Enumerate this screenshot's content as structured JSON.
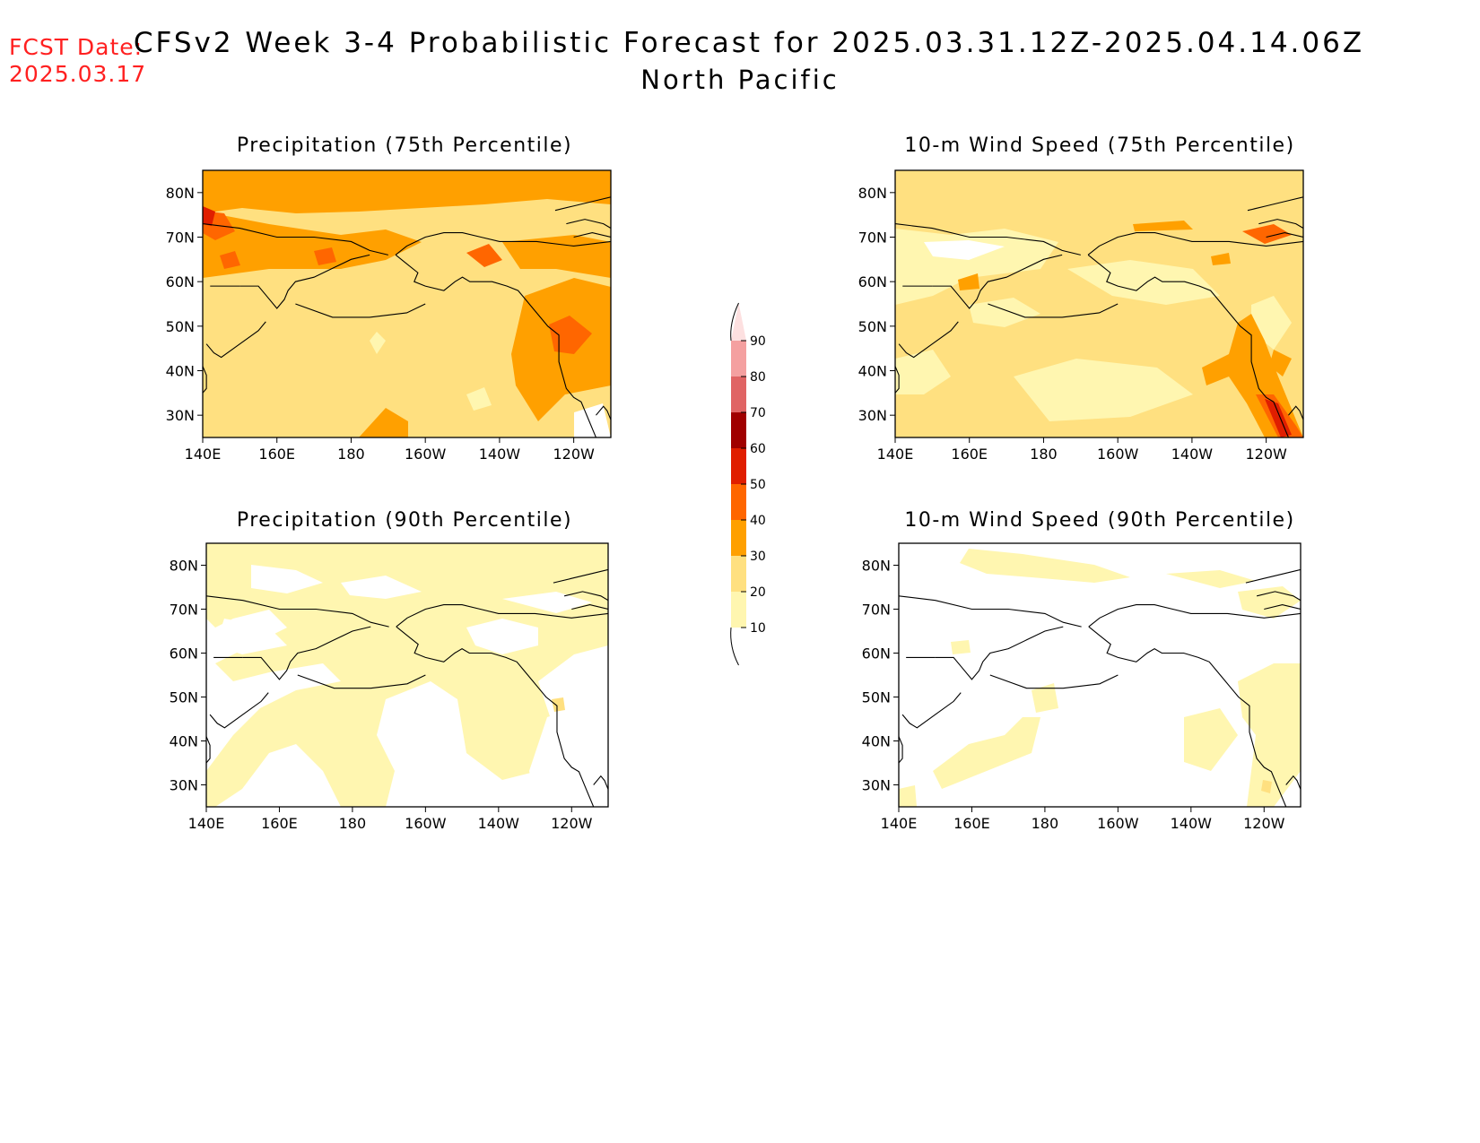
{
  "header": {
    "fcst_label": "FCST Date:",
    "fcst_date": "2025.03.17",
    "title": "CFSv2 Week 3-4 Probabilistic Forecast for 2025.03.31.12Z-2025.04.14.06Z",
    "region": "North Pacific"
  },
  "panels": [
    {
      "id": "precip75",
      "title": "Precipitation (75th Percentile)"
    },
    {
      "id": "wind75",
      "title": "10-m Wind Speed (75th Percentile)"
    },
    {
      "id": "precip90",
      "title": "Precipitation (90th Percentile)"
    },
    {
      "id": "wind90",
      "title": "10-m Wind Speed (90th Percentile)"
    }
  ],
  "axes": {
    "lat_labels": [
      "80N",
      "70N",
      "60N",
      "50N",
      "40N",
      "30N"
    ],
    "lon_labels": [
      "140E",
      "160E",
      "180",
      "160W",
      "140W",
      "120W"
    ]
  },
  "colorbar": {
    "labels": [
      "90",
      "80",
      "70",
      "60",
      "50",
      "40",
      "30",
      "20",
      "10"
    ],
    "colors": [
      "#fde0e0",
      "#f4a0a0",
      "#e06464",
      "#a00000",
      "#e01e00",
      "#ff6600",
      "#ffa000",
      "#ffe080",
      "#fff6b0"
    ]
  }
}
